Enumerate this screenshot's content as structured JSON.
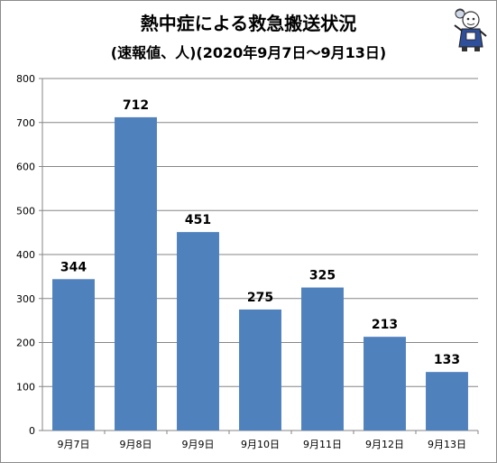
{
  "chart_data": {
    "type": "bar",
    "title": "熱中症による救急搬送状況",
    "subtitle": "(速報値、人)(2020年9月7日～9月13日)",
    "categories": [
      "9月7日",
      "9月8日",
      "9月9日",
      "9月10日",
      "9月11日",
      "9月12日",
      "9月13日"
    ],
    "values": [
      344,
      712,
      451,
      275,
      325,
      213,
      133
    ],
    "ylim": [
      0,
      800
    ],
    "yticks": [
      0,
      100,
      200,
      300,
      400,
      500,
      600,
      700,
      800
    ],
    "grid": true,
    "bar_color": "#4f81bd",
    "grid_color": "#868686"
  },
  "mascot_icon": "mascot-character-icon"
}
